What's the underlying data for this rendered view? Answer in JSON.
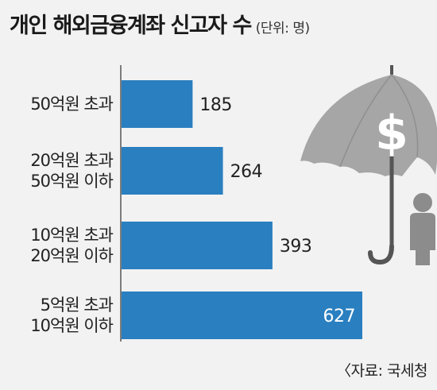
{
  "header": {
    "title": "개인 해외금융계좌 신고자 수",
    "unit": "(단위: 명)"
  },
  "source": "〈자료: 국세청",
  "colors": {
    "bar": "#2a7fc0",
    "axis": "#555555",
    "umbrella": "#a6a6a6",
    "handle": "#555555",
    "person": "#8c8c8c"
  },
  "chart_data": {
    "type": "bar",
    "orientation": "horizontal",
    "categories": [
      [
        "50억원 초과"
      ],
      [
        "20억원 초과",
        "50억원 이하"
      ],
      [
        "10억원 초과",
        "20억원 이하"
      ],
      [
        "5억원 초과",
        "10억원 이하"
      ]
    ],
    "values": [
      185,
      264,
      393,
      627
    ],
    "value_labels": [
      "185",
      "264",
      "393",
      "627"
    ],
    "xlim": [
      0,
      627
    ],
    "grid": false
  },
  "illustration": {
    "umbrella_symbol": "$"
  }
}
